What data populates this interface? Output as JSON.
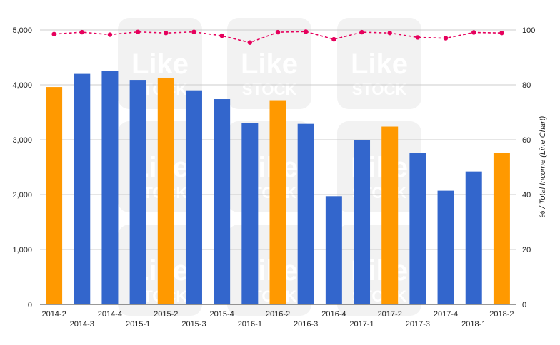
{
  "chart_data": {
    "type": "bar",
    "categories": [
      "2014-2",
      "2014-3",
      "2014-4",
      "2015-1",
      "2015-2",
      "2015-3",
      "2015-4",
      "2016-1",
      "2016-2",
      "2016-3",
      "2016-4",
      "2017-1",
      "2017-2",
      "2017-3",
      "2017-4",
      "2018-1",
      "2018-2"
    ],
    "series": [
      {
        "type": "bar",
        "axis": "left",
        "values": [
          3960,
          4200,
          4250,
          4090,
          4130,
          3900,
          3740,
          3300,
          3720,
          3290,
          1970,
          2990,
          3240,
          2760,
          2070,
          2420,
          2760
        ],
        "highlight": [
          true,
          false,
          false,
          false,
          true,
          false,
          false,
          false,
          true,
          false,
          false,
          false,
          true,
          false,
          false,
          false,
          true
        ]
      },
      {
        "type": "line",
        "axis": "right",
        "values": [
          98.5,
          99.2,
          98.3,
          99.3,
          98.9,
          99.3,
          97.9,
          95.4,
          99.2,
          99.4,
          96.6,
          99.2,
          98.9,
          97.3,
          97.0,
          99.1,
          98.9
        ]
      }
    ],
    "left_axis": {
      "ylim": [
        0,
        5000
      ],
      "ticks": [
        "0",
        "1,000",
        "2,000",
        "3,000",
        "4,000",
        "5,000"
      ],
      "tick_values": [
        0,
        1000,
        2000,
        3000,
        4000,
        5000
      ]
    },
    "right_axis": {
      "ylabel": "% / Total Income (Line Chart)",
      "ylim": [
        0,
        100
      ],
      "ticks": [
        "0",
        "20",
        "40",
        "60",
        "80",
        "100"
      ],
      "tick_values": [
        0,
        20,
        40,
        60,
        80,
        100
      ]
    },
    "grid": true,
    "watermark": {
      "line1": "Like",
      "line2": "STOCK"
    },
    "colors": {
      "bar": "#3366cc",
      "bar_highlight": "#ff9900",
      "line": "#e6005c",
      "grid": "#cccccc",
      "watermark": "#f2f2f2"
    }
  }
}
